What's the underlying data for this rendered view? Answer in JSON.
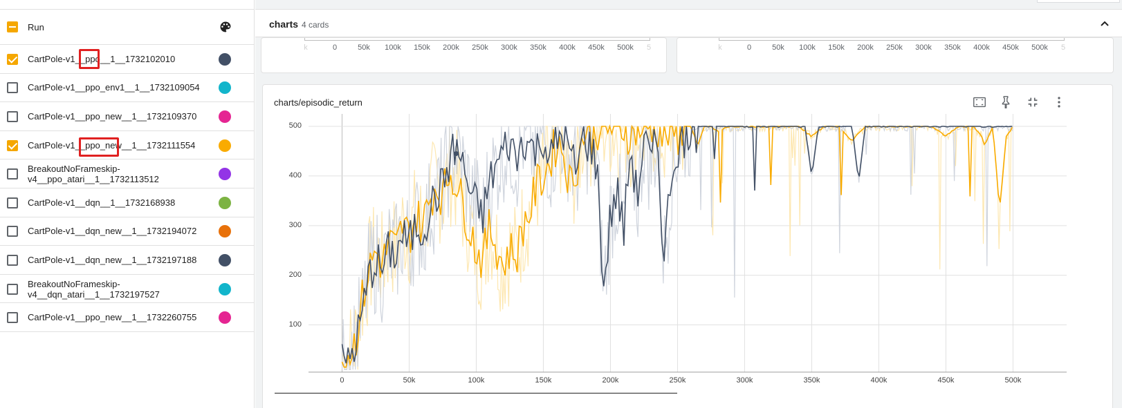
{
  "sidebar": {
    "header_label": "Run",
    "header_icon": "palette-icon",
    "runs": [
      {
        "name": "CartPole-v1__ppo__1__1732102010",
        "checked": true,
        "color": "#425066"
      },
      {
        "name": "CartPole-v1__ppo_env1__1__1732109054",
        "checked": false,
        "color": "#12b5cb"
      },
      {
        "name": "CartPole-v1__ppo_new__1__1732109370",
        "checked": false,
        "color": "#e52592"
      },
      {
        "name": "CartPole-v1__ppo_new__1__1732111554",
        "checked": true,
        "color": "#f9ab00"
      },
      {
        "name": "BreakoutNoFrameskip-v4__ppo_atari__1__1732113512",
        "line1": "BreakoutNoFrameskip-",
        "line2": "v4__ppo_atari__1__1732113512",
        "checked": false,
        "color": "#9334e6"
      },
      {
        "name": "CartPole-v1__dqn__1__1732168938",
        "checked": false,
        "color": "#7cb342"
      },
      {
        "name": "CartPole-v1__dqn_new__1__1732194072",
        "checked": false,
        "color": "#e8710a"
      },
      {
        "name": "CartPole-v1__dqn_new__1__1732197188",
        "checked": false,
        "color": "#425066"
      },
      {
        "name": "BreakoutNoFrameskip-v4__dqn_atari__1__1732197527",
        "line1": "BreakoutNoFrameskip-",
        "line2": "v4__dqn_atari__1__1732197527",
        "checked": false,
        "color": "#12b5cb"
      },
      {
        "name": "CartPole-v1__ppo_new__1__1732260755",
        "checked": false,
        "color": "#e52592"
      }
    ]
  },
  "section": {
    "title": "charts",
    "count_label": "4 cards",
    "collapse_icon": "chevron-up-icon"
  },
  "mini_charts": {
    "x_ticks": [
      "0",
      "50k",
      "100k",
      "150k",
      "200k",
      "250k",
      "300k",
      "350k",
      "400k",
      "450k",
      "500k"
    ]
  },
  "chart": {
    "title": "charts/episodic_return",
    "tools": [
      "fit-domain-icon",
      "pin-icon",
      "fullscreen-exit-icon",
      "more-vert-icon"
    ]
  },
  "chart_data": {
    "type": "line",
    "title": "charts/episodic_return",
    "x_ticks": [
      "0",
      "50k",
      "100k",
      "150k",
      "200k",
      "250k",
      "300k",
      "350k",
      "400k",
      "450k",
      "500k"
    ],
    "y_ticks": [
      "100",
      "200",
      "300",
      "400",
      "500"
    ],
    "xlim": [
      -25000,
      540000
    ],
    "ylim": [
      5,
      525
    ],
    "grid": true,
    "series": [
      {
        "color": "#f9ab00",
        "raw_color": "#fde7b0",
        "x": [
          0,
          5000,
          10000,
          15000,
          20000,
          25000,
          30000,
          35000,
          40000,
          45000,
          50000,
          55000,
          60000,
          65000,
          70000,
          75000,
          80000,
          85000,
          90000,
          95000,
          100000,
          105000,
          110000,
          115000,
          120000,
          125000,
          130000,
          135000,
          140000,
          145000,
          150000,
          155000,
          160000,
          165000,
          170000,
          175000,
          180000,
          185000,
          190000,
          195000,
          200000,
          205000,
          210000,
          215000,
          220000,
          225000,
          230000,
          235000,
          240000,
          245000,
          250000,
          255000,
          260000,
          265000,
          270000,
          275000,
          280000,
          290000,
          300000,
          310000,
          320000,
          330000,
          340000,
          350000,
          360000,
          370000,
          380000,
          390000,
          400000,
          410000,
          420000,
          430000,
          440000,
          450000,
          460000,
          470000,
          480000,
          485000,
          490000,
          495000,
          500000
        ],
        "y": [
          30,
          40,
          70,
          150,
          210,
          250,
          220,
          270,
          250,
          300,
          280,
          320,
          300,
          350,
          380,
          360,
          410,
          390,
          340,
          300,
          250,
          230,
          300,
          260,
          220,
          250,
          240,
          300,
          330,
          380,
          400,
          430,
          470,
          450,
          380,
          420,
          490,
          480,
          495,
          500,
          500,
          490,
          500,
          480,
          500,
          490,
          500,
          500,
          470,
          500,
          480,
          500,
          500,
          460,
          500,
          500,
          490,
          500,
          500,
          500,
          500,
          500,
          500,
          480,
          500,
          500,
          470,
          500,
          500,
          500,
          500,
          500,
          500,
          480,
          500,
          500,
          470,
          500,
          330,
          480,
          500
        ]
      },
      {
        "color": "#425066",
        "raw_color": "#cfd4dd",
        "x": [
          0,
          5000,
          10000,
          15000,
          20000,
          25000,
          30000,
          35000,
          40000,
          45000,
          50000,
          55000,
          60000,
          65000,
          70000,
          75000,
          80000,
          85000,
          90000,
          95000,
          100000,
          105000,
          110000,
          115000,
          120000,
          125000,
          130000,
          135000,
          140000,
          145000,
          150000,
          155000,
          160000,
          165000,
          170000,
          175000,
          180000,
          185000,
          190000,
          195000,
          200000,
          205000,
          210000,
          215000,
          220000,
          225000,
          230000,
          235000,
          240000,
          245000,
          250000,
          260000,
          270000,
          280000,
          290000,
          300000,
          310000,
          320000,
          330000,
          340000,
          345000,
          350000,
          355000,
          360000,
          370000,
          380000,
          385000,
          390000,
          395000,
          400000,
          410000,
          420000,
          430000,
          440000,
          450000,
          460000,
          470000,
          480000,
          490000,
          500000
        ],
        "y": [
          20,
          30,
          60,
          120,
          200,
          230,
          210,
          250,
          240,
          280,
          260,
          300,
          290,
          330,
          360,
          380,
          430,
          460,
          420,
          370,
          340,
          320,
          390,
          420,
          450,
          470,
          430,
          480,
          460,
          450,
          480,
          430,
          470,
          490,
          440,
          410,
          480,
          460,
          420,
          170,
          320,
          370,
          290,
          460,
          350,
          480,
          420,
          480,
          230,
          400,
          460,
          500,
          500,
          500,
          500,
          500,
          500,
          500,
          500,
          500,
          500,
          400,
          500,
          500,
          500,
          500,
          390,
          500,
          500,
          500,
          500,
          500,
          500,
          500,
          500,
          500,
          500,
          500,
          500,
          500
        ]
      }
    ]
  }
}
